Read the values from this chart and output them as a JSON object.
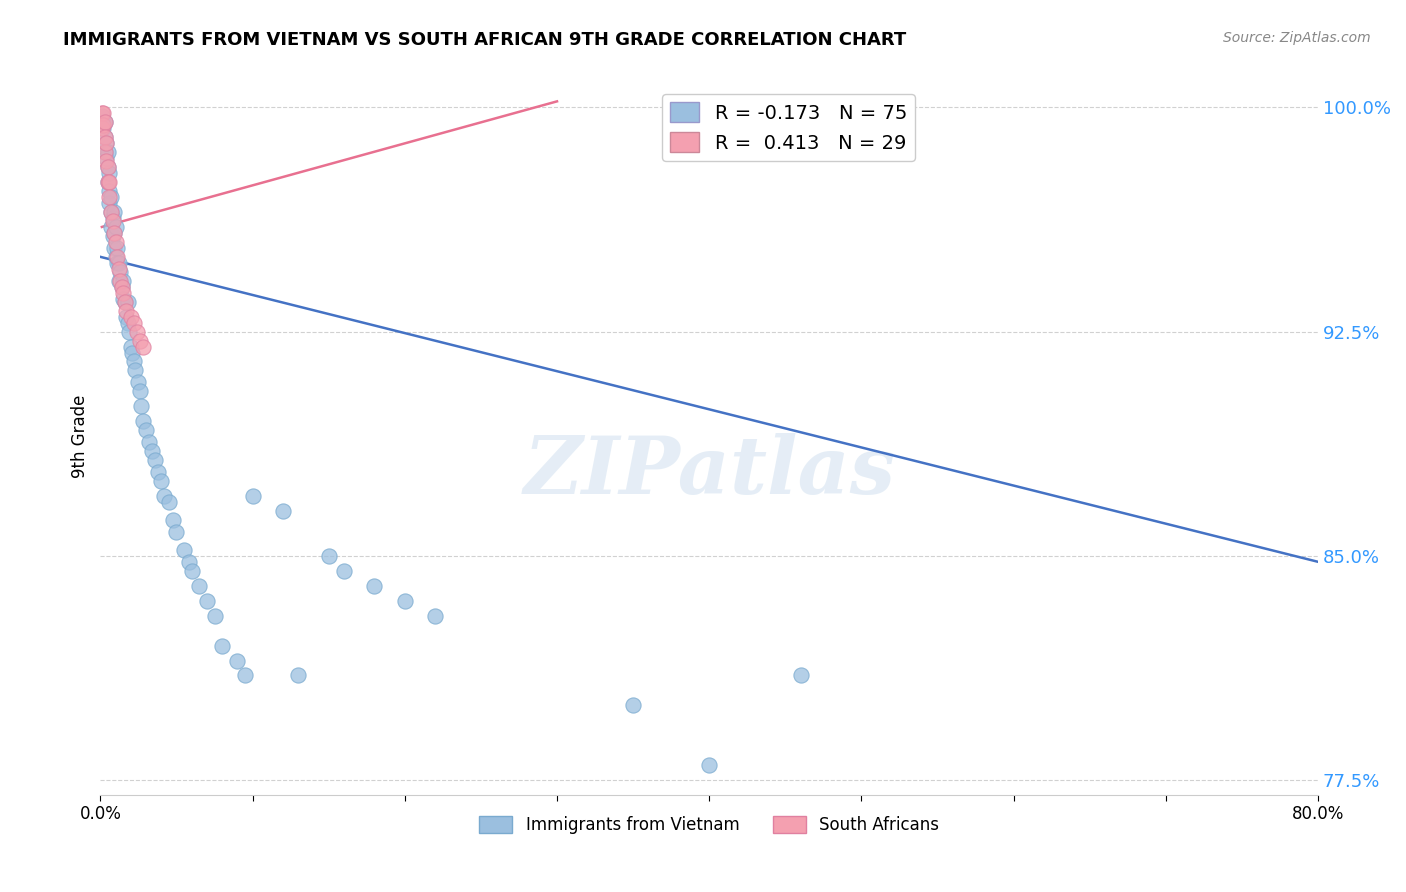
{
  "title": "IMMIGRANTS FROM VIETNAM VS SOUTH AFRICAN 9TH GRADE CORRELATION CHART",
  "source": "Source: ZipAtlas.com",
  "ylabel": "9th Grade",
  "ytick_labels": [
    "100.0%",
    "92.5%",
    "85.0%",
    "77.5%"
  ],
  "ytick_values": [
    1.0,
    0.925,
    0.85,
    0.775
  ],
  "legend_entry1": "R = -0.173   N = 75",
  "legend_entry2": "R =  0.413   N = 29",
  "legend_label1": "Immigrants from Vietnam",
  "legend_label2": "South Africans",
  "watermark": "ZIPatlas",
  "blue_color": "#9BBFDF",
  "pink_color": "#F4A0B0",
  "trendline_blue": "#4472C4",
  "trendline_pink": "#E87090",
  "blue_scatter_x": [
    0.001,
    0.002,
    0.002,
    0.003,
    0.003,
    0.003,
    0.004,
    0.004,
    0.005,
    0.005,
    0.005,
    0.006,
    0.006,
    0.006,
    0.007,
    0.007,
    0.007,
    0.008,
    0.008,
    0.009,
    0.009,
    0.009,
    0.01,
    0.01,
    0.011,
    0.011,
    0.012,
    0.012,
    0.013,
    0.014,
    0.015,
    0.015,
    0.016,
    0.017,
    0.018,
    0.018,
    0.019,
    0.02,
    0.021,
    0.022,
    0.023,
    0.025,
    0.026,
    0.027,
    0.028,
    0.03,
    0.032,
    0.034,
    0.036,
    0.038,
    0.04,
    0.042,
    0.045,
    0.048,
    0.05,
    0.055,
    0.058,
    0.06,
    0.065,
    0.07,
    0.075,
    0.08,
    0.09,
    0.095,
    0.1,
    0.12,
    0.13,
    0.15,
    0.16,
    0.18,
    0.2,
    0.22,
    0.35,
    0.4,
    0.46
  ],
  "blue_scatter_y": [
    0.997,
    0.995,
    0.993,
    0.995,
    0.99,
    0.985,
    0.988,
    0.983,
    0.985,
    0.98,
    0.975,
    0.978,
    0.972,
    0.968,
    0.97,
    0.965,
    0.96,
    0.963,
    0.957,
    0.965,
    0.958,
    0.953,
    0.96,
    0.95,
    0.953,
    0.948,
    0.948,
    0.942,
    0.945,
    0.94,
    0.942,
    0.936,
    0.935,
    0.93,
    0.935,
    0.928,
    0.925,
    0.92,
    0.918,
    0.915,
    0.912,
    0.908,
    0.905,
    0.9,
    0.895,
    0.892,
    0.888,
    0.885,
    0.882,
    0.878,
    0.875,
    0.87,
    0.868,
    0.862,
    0.858,
    0.852,
    0.848,
    0.845,
    0.84,
    0.835,
    0.83,
    0.82,
    0.815,
    0.81,
    0.87,
    0.865,
    0.81,
    0.85,
    0.845,
    0.84,
    0.835,
    0.83,
    0.8,
    0.78,
    0.81
  ],
  "pink_scatter_x": [
    0.001,
    0.001,
    0.002,
    0.002,
    0.003,
    0.003,
    0.003,
    0.004,
    0.004,
    0.005,
    0.005,
    0.006,
    0.006,
    0.007,
    0.008,
    0.009,
    0.01,
    0.011,
    0.012,
    0.013,
    0.014,
    0.015,
    0.016,
    0.017,
    0.02,
    0.022,
    0.024,
    0.026,
    0.028
  ],
  "pink_scatter_y": [
    0.998,
    0.993,
    0.998,
    0.994,
    0.995,
    0.99,
    0.985,
    0.988,
    0.982,
    0.98,
    0.975,
    0.975,
    0.97,
    0.965,
    0.962,
    0.958,
    0.955,
    0.95,
    0.946,
    0.942,
    0.94,
    0.938,
    0.935,
    0.932,
    0.93,
    0.928,
    0.925,
    0.922,
    0.92
  ],
  "xmin": 0.0,
  "xmax": 0.8,
  "ymin": 0.77,
  "ymax": 1.01,
  "blue_trendline_x": [
    0.0,
    0.8
  ],
  "blue_trendline_y": [
    0.95,
    0.848
  ],
  "pink_trendline_x": [
    0.001,
    0.3
  ],
  "pink_trendline_y": [
    0.96,
    1.002
  ]
}
